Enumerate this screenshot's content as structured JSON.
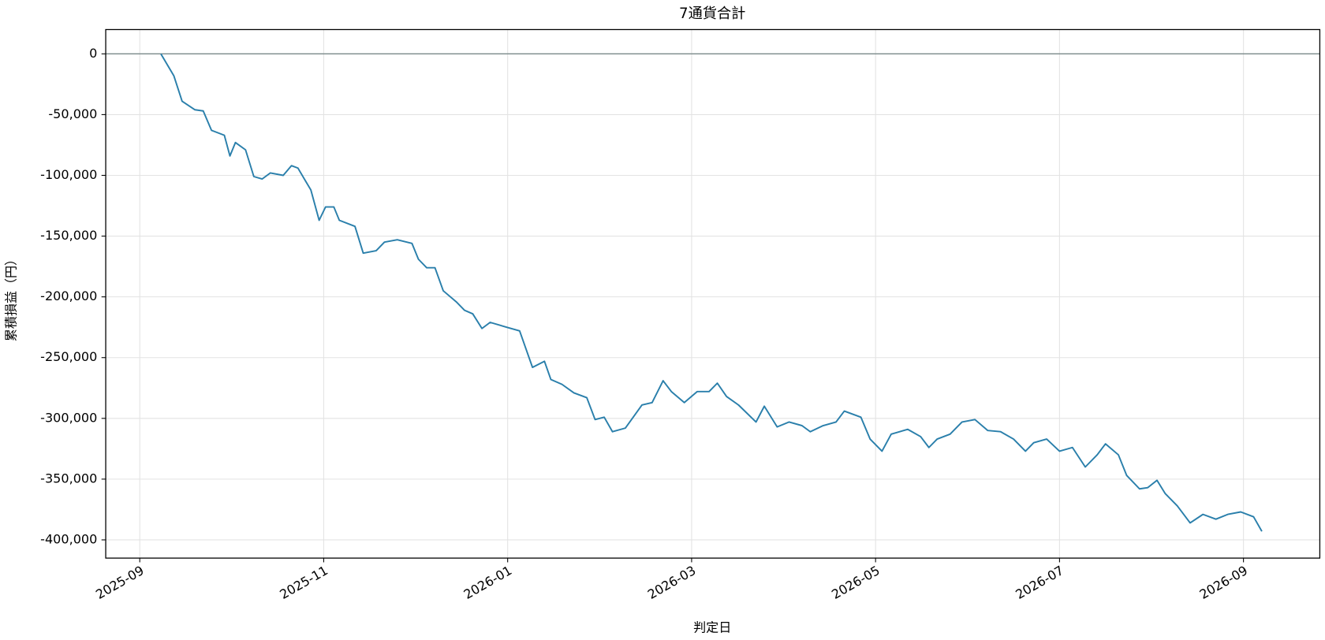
{
  "chart_data": {
    "type": "line",
    "title": "7通貨合計",
    "xlabel": "判定日",
    "ylabel": "累積損益（円）",
    "x": [
      0.23,
      0.37,
      0.46,
      0.6,
      0.69,
      0.78,
      0.92,
      0.98,
      1.04,
      1.15,
      1.24,
      1.33,
      1.42,
      1.56,
      1.65,
      1.72,
      1.79,
      1.86,
      1.95,
      2.02,
      2.11,
      2.17,
      2.34,
      2.43,
      2.57,
      2.66,
      2.8,
      2.96,
      3.03,
      3.12,
      3.21,
      3.3,
      3.44,
      3.53,
      3.62,
      3.72,
      3.81,
      3.99,
      4.13,
      4.27,
      4.4,
      4.47,
      4.59,
      4.72,
      4.86,
      4.95,
      5.05,
      5.14,
      5.28,
      5.46,
      5.57,
      5.69,
      5.78,
      5.92,
      6.06,
      6.19,
      6.28,
      6.38,
      6.51,
      6.7,
      6.79,
      6.93,
      7.06,
      7.2,
      7.29,
      7.43,
      7.57,
      7.66,
      7.84,
      7.94,
      8.07,
      8.17,
      8.35,
      8.49,
      8.58,
      8.67,
      8.81,
      8.94,
      9.08,
      9.22,
      9.36,
      9.5,
      9.63,
      9.72,
      9.86,
      10.0,
      10.14,
      10.28,
      10.41,
      10.5,
      10.64,
      10.73,
      10.87,
      10.96,
      11.06,
      11.15,
      11.28,
      11.42,
      11.56,
      11.7,
      11.83,
      11.97,
      12.11,
      12.2
    ],
    "series": [
      {
        "name": "7通貨合計",
        "color": "#2a7fab",
        "values": [
          0,
          -18000,
          -39000,
          -46000,
          -47000,
          -63000,
          -67000,
          -84000,
          -73000,
          -79000,
          -101000,
          -103000,
          -98000,
          -100000,
          -92000,
          -94000,
          -103000,
          -112000,
          -137000,
          -126000,
          -126000,
          -137000,
          -142000,
          -164000,
          -162000,
          -155000,
          -153000,
          -156000,
          -169000,
          -176000,
          -176000,
          -195000,
          -204000,
          -211000,
          -214000,
          -226000,
          -221000,
          -225000,
          -228000,
          -258000,
          -253000,
          -268000,
          -272000,
          -279000,
          -283000,
          -301000,
          -299000,
          -311000,
          -308000,
          -289000,
          -287000,
          -269000,
          -278000,
          -287000,
          -278000,
          -278000,
          -271000,
          -282000,
          -289000,
          -303000,
          -290000,
          -307000,
          -303000,
          -306000,
          -311000,
          -306000,
          -303000,
          -294000,
          -299000,
          -317000,
          -327000,
          -313000,
          -309000,
          -315000,
          -324000,
          -317000,
          -313000,
          -303000,
          -301000,
          -310000,
          -311000,
          -317000,
          -327000,
          -320000,
          -317000,
          -327000,
          -324000,
          -340000,
          -330000,
          -321000,
          -330000,
          -347000,
          -358000,
          -357000,
          -351000,
          -362000,
          -372000,
          -386000,
          -379000,
          -383000,
          -379000,
          -377000,
          -381000,
          -393000
        ]
      }
    ],
    "xlim": [
      -0.37,
      12.83
    ],
    "xticks": [
      {
        "value": 0,
        "label": "2025-09"
      },
      {
        "value": 2,
        "label": "2025-11"
      },
      {
        "value": 4,
        "label": "2026-01"
      },
      {
        "value": 6,
        "label": "2026-03"
      },
      {
        "value": 8,
        "label": "2026-05"
      },
      {
        "value": 10,
        "label": "2026-07"
      },
      {
        "value": 12,
        "label": "2026-09"
      }
    ],
    "ylim": [
      -415000,
      20000
    ],
    "yticks": [
      {
        "value": 0,
        "label": "0"
      },
      {
        "value": -50000,
        "label": "-50,000"
      },
      {
        "value": -100000,
        "label": "-100,000"
      },
      {
        "value": -150000,
        "label": "-150,000"
      },
      {
        "value": -200000,
        "label": "-200,000"
      },
      {
        "value": -250000,
        "label": "-250,000"
      },
      {
        "value": -300000,
        "label": "-300,000"
      },
      {
        "value": -350000,
        "label": "-350,000"
      },
      {
        "value": -400000,
        "label": "-400,000"
      }
    ],
    "grid": true,
    "zero_line": true
  }
}
